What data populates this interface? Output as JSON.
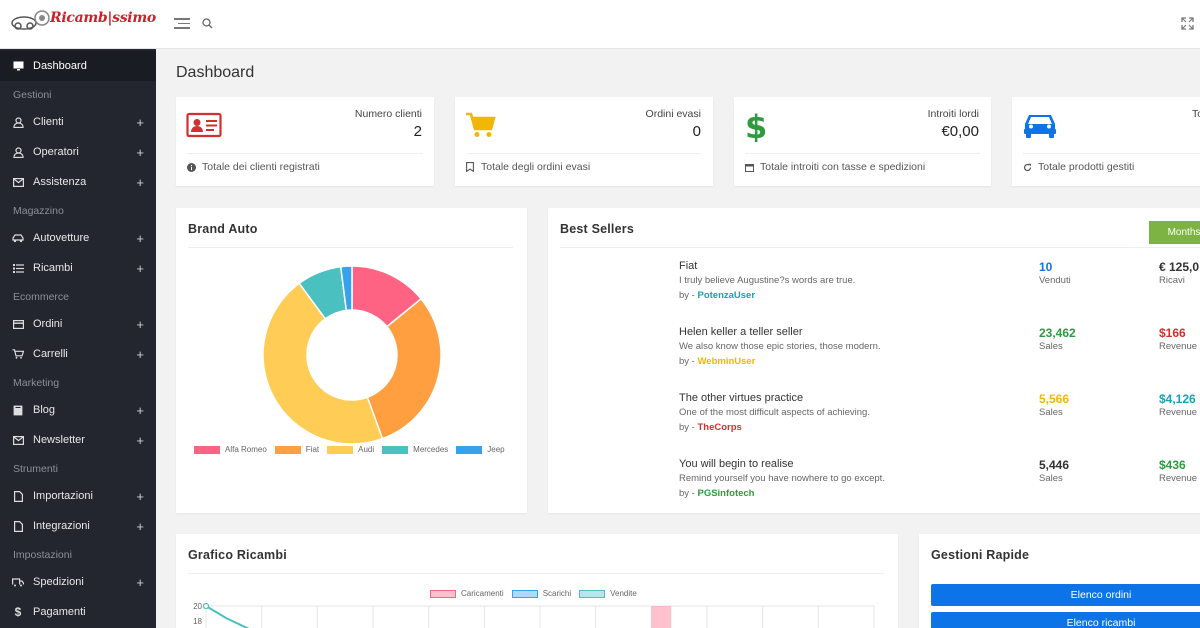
{
  "brand": {
    "name": "Ricamb|ssimo"
  },
  "header": {
    "title": "Dashboard"
  },
  "sidebar": {
    "items": [
      {
        "label": "Dashboard"
      },
      {
        "label": "Clienti"
      },
      {
        "label": "Operatori"
      },
      {
        "label": "Assistenza"
      },
      {
        "label": "Autovetture"
      },
      {
        "label": "Ricambi"
      },
      {
        "label": "Ordini"
      },
      {
        "label": "Carrelli"
      },
      {
        "label": "Blog"
      },
      {
        "label": "Newsletter"
      },
      {
        "label": "Importazioni"
      },
      {
        "label": "Integrazioni"
      },
      {
        "label": "Spedizioni"
      },
      {
        "label": "Pagamenti"
      }
    ],
    "sections": [
      "Gestioni",
      "Magazzino",
      "Ecommerce",
      "Marketing",
      "Strumenti",
      "Impostazioni"
    ],
    "plus": "+"
  },
  "stats": [
    {
      "label": "Numero clienti",
      "value": "2",
      "footer": "Totale dei clienti registrati",
      "icon": "id-card-icon",
      "color": "#d32f2f"
    },
    {
      "label": "Ordini evasi",
      "value": "0",
      "footer": "Totale degli ordini evasi",
      "icon": "cart-icon",
      "color": "#f2b705"
    },
    {
      "label": "Introiti lordi",
      "value": "€0,00",
      "footer": "Totale introiti con tasse e spedizioni",
      "icon": "dollar-icon",
      "color": "#2e9b3f"
    },
    {
      "label": "To",
      "value": "",
      "footer": "Totale prodotti gestiti",
      "icon": "car-icon",
      "color": "#0d74e7"
    }
  ],
  "brand_auto": {
    "title": "Brand Auto",
    "chart_data": {
      "type": "pie",
      "labels": [
        "Alfa Romeo",
        "Fiat",
        "Audi",
        "Mercedes",
        "Jeep"
      ],
      "values": [
        14,
        30,
        45,
        8,
        2
      ],
      "colors": [
        "#ff6384",
        "#ff9f40",
        "#ffcd56",
        "#4bc0c0",
        "#36a2eb"
      ]
    }
  },
  "best_sellers": {
    "title": "Best Sellers",
    "filter": "Months",
    "rows": [
      {
        "name": "Fiat",
        "sub": "I truly believe Augustine?s words are true.",
        "by": "by - ",
        "user": "PotenzaUser",
        "user_color": "#17a2b8",
        "n1": "10",
        "n1_color": "#0d74e7",
        "l1": "Venduti",
        "n2": "€ 125,0",
        "n2_color": "#333",
        "l2": "Ricavi"
      },
      {
        "name": "Helen keller a teller seller",
        "sub": "We also know those epic stories, those modern.",
        "by": "by - ",
        "user": "WebminUser",
        "user_color": "#f2b705",
        "n1": "23,462",
        "n1_color": "#2e9b3f",
        "l1": "Sales",
        "n2": "$166",
        "n2_color": "#d32f2f",
        "l2": "Revenue"
      },
      {
        "name": "The other virtues practice",
        "sub": "One of the most difficult aspects of achieving.",
        "by": "by - ",
        "user": "TheCorps",
        "user_color": "#d32f2f",
        "n1": "5,566",
        "n1_color": "#f2b705",
        "l1": "Sales",
        "n2": "$4,126",
        "n2_color": "#17a2b8",
        "l2": "Revenue"
      },
      {
        "name": "You will begin to realise",
        "sub": "Remind yourself you have nowhere to go except.",
        "by": "by - ",
        "user": "PGSinfotech",
        "user_color": "#2e9b3f",
        "n1": "5,446",
        "n1_color": "#333",
        "l1": "Sales",
        "n2": "$436",
        "n2_color": "#2e9b3f",
        "l2": "Revenue"
      }
    ]
  },
  "grafico": {
    "title": "Grafico Ricambi",
    "chart_data": {
      "type": "line",
      "series": [
        {
          "name": "Caricamenti",
          "color": "#ff6384"
        },
        {
          "name": "Scarichi",
          "color": "#36a2eb"
        },
        {
          "name": "Vendite",
          "color": "#4bc0c0"
        }
      ],
      "yticks": [
        "20",
        "18"
      ],
      "ylim": [
        0,
        20
      ],
      "grid": true
    }
  },
  "gestioni": {
    "title": "Gestioni Rapide",
    "buttons": [
      "Elenco ordini",
      "Elenco ricambi"
    ]
  }
}
